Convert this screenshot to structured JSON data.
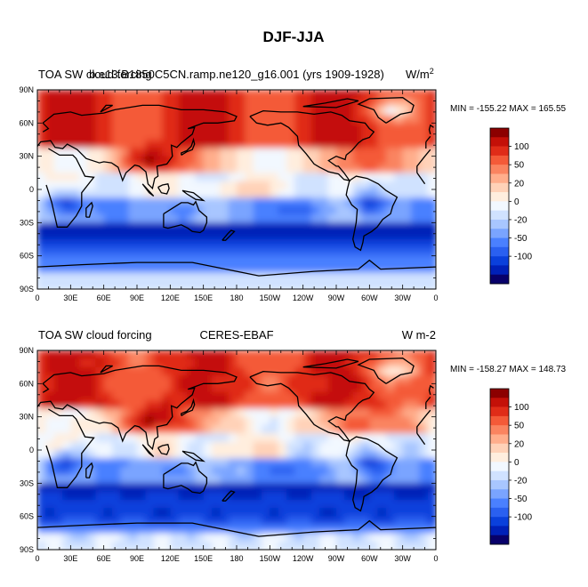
{
  "figure_title": "DJF-JJA",
  "panels": [
    {
      "left_label": "TOA SW cloud forcing",
      "center_label": "b.e13.B1850C5CN.ramp.ne120_g16.001 (yrs 1909-1928)",
      "units_base": "W/m",
      "units_exp": "2",
      "stats": "MIN = -155.22 MAX = 165.55"
    },
    {
      "left_label": "TOA SW cloud forcing",
      "center_label": "CERES-EBAF",
      "units_base": "W m-2",
      "units_exp": "",
      "stats": "MIN = -158.27 MAX = 148.73"
    }
  ],
  "chart_data": {
    "type": "heatmap",
    "title": "DJF-JJA",
    "x_ticks": [
      "0",
      "30E",
      "60E",
      "90E",
      "120E",
      "150E",
      "180",
      "150W",
      "120W",
      "90W",
      "60W",
      "30W",
      "0"
    ],
    "y_ticks": [
      "90N",
      "60N",
      "30N",
      "0",
      "30S",
      "60S",
      "90S"
    ],
    "xlim": [
      0,
      360
    ],
    "ylim": [
      -90,
      90
    ],
    "colorbar": {
      "levels": [
        -120,
        -100,
        -80,
        -65,
        -50,
        -35,
        -20,
        -10,
        0,
        10,
        20,
        35,
        50,
        65,
        80,
        100,
        120
      ],
      "labels": [
        "100",
        "50",
        "20",
        "0",
        "-20",
        "-50",
        "-100"
      ],
      "colors": [
        "#08006a",
        "#0020b8",
        "#0a40dc",
        "#2a60f0",
        "#4a80ff",
        "#7aa4ff",
        "#a8c6ff",
        "#d0e2ff",
        "#f2f8ff",
        "#ffeede",
        "#ffd2b8",
        "#ffae8c",
        "#fa8460",
        "#f45a38",
        "#e02c18",
        "#c41008",
        "#8c0000"
      ]
    },
    "colors": {
      "land": "#000000",
      "frame": "#000000"
    }
  }
}
